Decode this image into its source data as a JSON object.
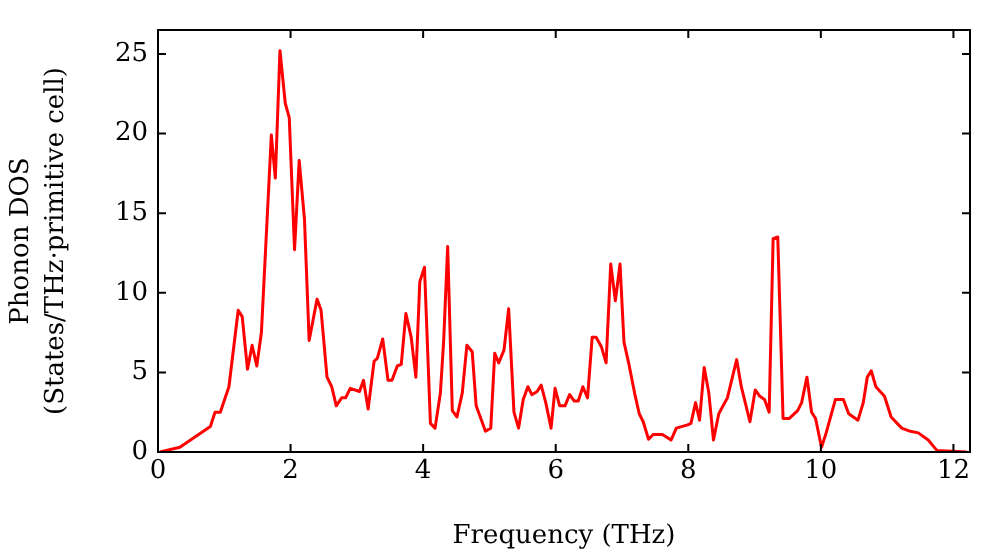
{
  "chart_data": {
    "type": "line",
    "xlabel": "Frequency (THz)",
    "ylabel": "Phonon DOS\n(States/THz·primitive cell)",
    "xlim": [
      0,
      12.25
    ],
    "ylim": [
      0,
      26.5
    ],
    "xticks": [
      0,
      2,
      4,
      6,
      8,
      10,
      12
    ],
    "yticks": [
      0,
      5,
      10,
      15,
      20,
      25
    ],
    "marker": "none",
    "line_style": "solid",
    "series": [
      {
        "color": "#ff0000",
        "x": [
          0.03,
          0.33,
          0.79,
          0.86,
          0.94,
          1.07,
          1.21,
          1.27,
          1.35,
          1.42,
          1.49,
          1.56,
          1.71,
          1.77,
          1.84,
          1.92,
          1.98,
          2.06,
          2.13,
          2.21,
          2.28,
          2.4,
          2.46,
          2.55,
          2.62,
          2.69,
          2.77,
          2.83,
          2.9,
          3.04,
          3.1,
          3.17,
          3.26,
          3.31,
          3.39,
          3.47,
          3.53,
          3.61,
          3.67,
          3.74,
          3.82,
          3.89,
          3.95,
          4.02,
          4.11,
          4.18,
          4.26,
          4.31,
          4.37,
          4.44,
          4.51,
          4.59,
          4.66,
          4.74,
          4.8,
          4.87,
          4.94,
          5.02,
          5.08,
          5.14,
          5.22,
          5.29,
          5.37,
          5.44,
          5.51,
          5.58,
          5.64,
          5.72,
          5.78,
          5.85,
          5.93,
          5.99,
          6.06,
          6.14,
          6.21,
          6.28,
          6.34,
          6.41,
          6.48,
          6.55,
          6.61,
          6.69,
          6.76,
          6.83,
          6.9,
          6.97,
          7.03,
          7.1,
          7.19,
          7.26,
          7.32,
          7.4,
          7.47,
          7.61,
          7.74,
          7.82,
          7.99,
          8.04,
          8.11,
          8.17,
          8.24,
          8.31,
          8.38,
          8.46,
          8.59,
          8.73,
          8.8,
          8.93,
          9.01,
          9.08,
          9.15,
          9.22,
          9.28,
          9.35,
          9.43,
          9.52,
          9.65,
          9.71,
          9.79,
          9.86,
          9.92,
          10.01,
          10.08,
          10.22,
          10.34,
          10.42,
          10.56,
          10.64,
          10.7,
          10.76,
          10.83,
          10.96,
          11.06,
          11.22,
          11.35,
          11.47,
          11.62,
          11.75,
          12.2
        ],
        "values": [
          0,
          0.3,
          1.6,
          2.5,
          2.5,
          4.1,
          8.9,
          8.5,
          5.2,
          6.7,
          5.4,
          7.5,
          19.9,
          17.2,
          25.2,
          21.9,
          21,
          12.7,
          18.3,
          14.6,
          7,
          9.6,
          8.9,
          4.7,
          4.1,
          2.9,
          3.4,
          3.4,
          4,
          3.8,
          4.5,
          2.7,
          5.7,
          5.9,
          7.1,
          4.5,
          4.5,
          5.4,
          5.5,
          8.7,
          7.2,
          4.7,
          10.7,
          11.6,
          1.8,
          1.5,
          3.7,
          7,
          12.9,
          2.6,
          2.2,
          3.7,
          6.7,
          6.3,
          2.9,
          2.1,
          1.3,
          1.5,
          6.2,
          5.6,
          6.4,
          9,
          2.5,
          1.5,
          3.3,
          4.1,
          3.6,
          3.8,
          4.2,
          3.1,
          1.5,
          4,
          2.9,
          2.9,
          3.6,
          3.2,
          3.2,
          4.1,
          3.4,
          7.2,
          7.2,
          6.6,
          5.6,
          11.8,
          9.5,
          11.8,
          6.9,
          5.6,
          3.7,
          2.4,
          1.9,
          0.8,
          1.1,
          1.1,
          0.75,
          1.5,
          1.7,
          1.8,
          3.1,
          2,
          5.3,
          3.7,
          0.75,
          2.4,
          3.4,
          5.8,
          4.1,
          1.9,
          3.9,
          3.5,
          3.3,
          2.5,
          13.4,
          13.5,
          2.1,
          2.1,
          2.6,
          3.1,
          4.7,
          2.5,
          2.1,
          0.3,
          1.2,
          3.3,
          3.3,
          2.4,
          2,
          3.1,
          4.7,
          5.1,
          4.1,
          3.5,
          2.2,
          1.5,
          1.3,
          1.2,
          0.75,
          0.1,
          0
        ]
      }
    ]
  }
}
